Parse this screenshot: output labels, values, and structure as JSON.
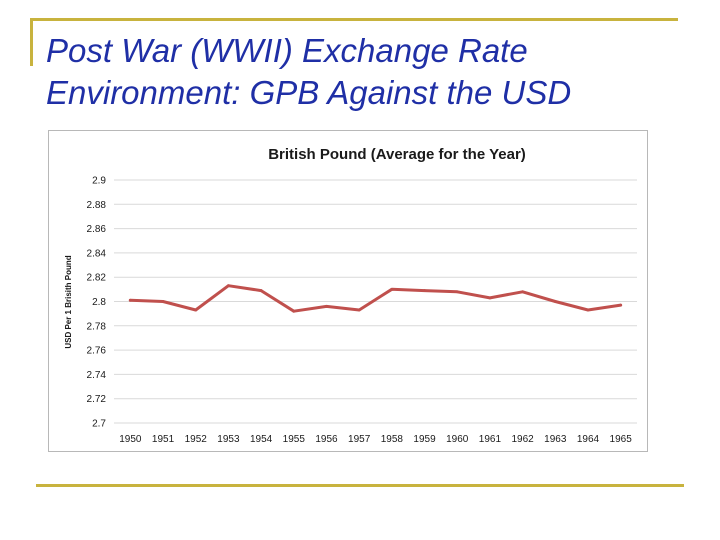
{
  "slide": {
    "title": "Post War (WWII) Exchange Rate Environment:  GPB Against the USD"
  },
  "colors": {
    "accent_rule": "#c8b33e",
    "title_text": "#1f2fa6",
    "series_line": "#c0504d",
    "gridline": "#d9d9d9"
  },
  "chart_data": {
    "type": "line",
    "title": "British Pound (Average for the Year)",
    "xlabel": "",
    "ylabel": "USD Per 1 Brisith Pound",
    "categories": [
      "1950",
      "1951",
      "1952",
      "1953",
      "1954",
      "1955",
      "1956",
      "1957",
      "1958",
      "1959",
      "1960",
      "1961",
      "1962",
      "1963",
      "1964",
      "1965"
    ],
    "series": [
      {
        "values": [
          2.801,
          2.8,
          2.793,
          2.813,
          2.809,
          2.792,
          2.796,
          2.793,
          2.81,
          2.809,
          2.808,
          2.803,
          2.808,
          2.8,
          2.793,
          2.797
        ]
      }
    ],
    "yticks": [
      "2.7",
      "2.72",
      "2.74",
      "2.76",
      "2.78",
      "2.8",
      "2.82",
      "2.84",
      "2.86",
      "2.88",
      "2.9"
    ],
    "ylim": [
      2.7,
      2.9
    ],
    "grid": true,
    "legend": "none"
  }
}
